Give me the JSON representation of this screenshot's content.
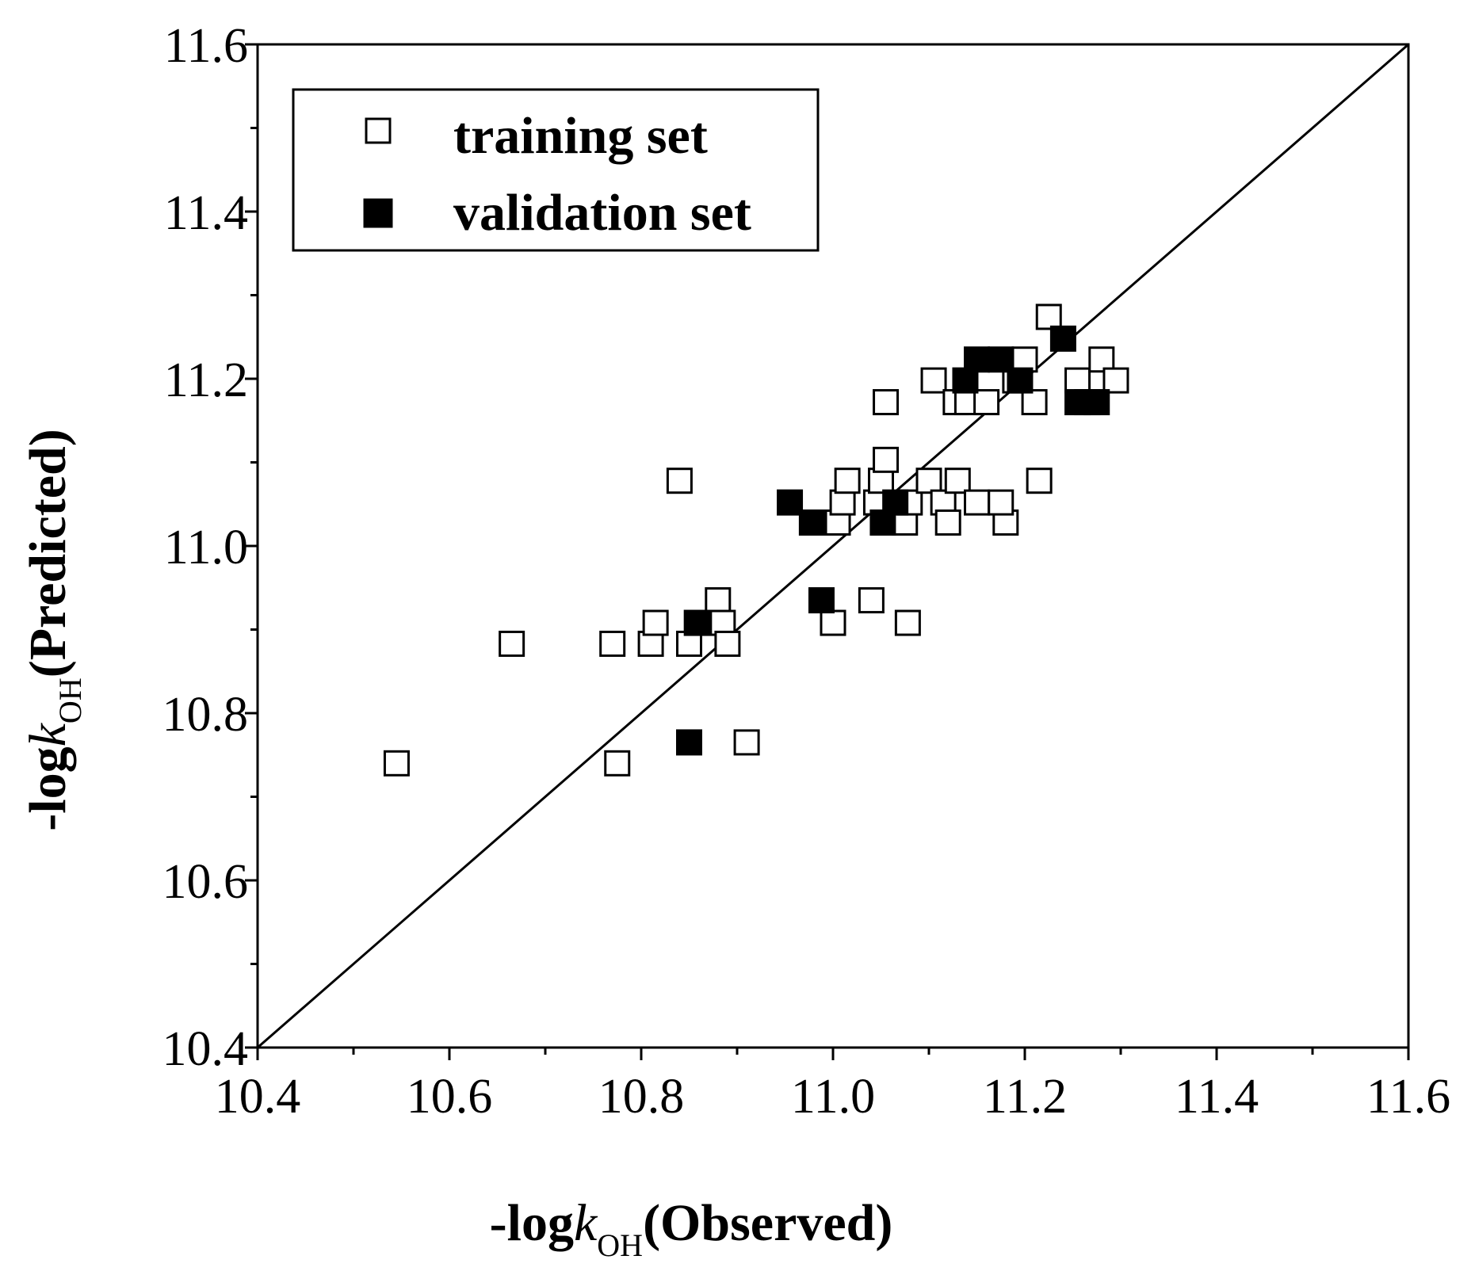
{
  "chart_data": {
    "type": "scatter",
    "title": "",
    "xlabel": {
      "prefix": "-log",
      "var": "k",
      "sub": "OH",
      "suffix": "(Observed)"
    },
    "ylabel": {
      "prefix": "-log",
      "var": "k",
      "sub": "OH",
      "suffix": "(Predicted)"
    },
    "xlim": [
      10.4,
      11.6
    ],
    "ylim": [
      10.4,
      11.6
    ],
    "xticks": [
      "10.4",
      "10.6",
      "10.8",
      "11.0",
      "11.2",
      "11.4",
      "11.6"
    ],
    "yticks": [
      "10.4",
      "10.6",
      "10.8",
      "11.0",
      "11.2",
      "11.4",
      "11.6"
    ],
    "grid": false,
    "legend_position": "top-left",
    "reference_line": {
      "from": [
        10.4,
        10.4
      ],
      "to": [
        11.6,
        11.6
      ]
    },
    "series": [
      {
        "name": "training set",
        "marker": "open-square",
        "points": [
          [
            10.545,
            10.74
          ],
          [
            10.665,
            10.883
          ],
          [
            10.775,
            10.74
          ],
          [
            10.77,
            10.883
          ],
          [
            10.81,
            10.883
          ],
          [
            10.815,
            10.908
          ],
          [
            10.84,
            11.078
          ],
          [
            10.85,
            10.883
          ],
          [
            10.88,
            10.935
          ],
          [
            10.885,
            10.908
          ],
          [
            10.89,
            10.883
          ],
          [
            10.91,
            10.765
          ],
          [
            11.0,
            10.908
          ],
          [
            11.005,
            11.028
          ],
          [
            11.01,
            11.052
          ],
          [
            11.015,
            11.078
          ],
          [
            11.04,
            10.935
          ],
          [
            11.045,
            11.052
          ],
          [
            11.05,
            11.078
          ],
          [
            11.055,
            11.103
          ],
          [
            11.055,
            11.172
          ],
          [
            11.075,
            11.028
          ],
          [
            11.08,
            11.052
          ],
          [
            11.078,
            10.908
          ],
          [
            11.1,
            11.078
          ],
          [
            11.105,
            11.198
          ],
          [
            11.115,
            11.052
          ],
          [
            11.12,
            11.028
          ],
          [
            11.128,
            11.172
          ],
          [
            11.13,
            11.078
          ],
          [
            11.14,
            11.172
          ],
          [
            11.15,
            11.052
          ],
          [
            11.16,
            11.172
          ],
          [
            11.18,
            11.028
          ],
          [
            11.175,
            11.052
          ],
          [
            11.19,
            11.198
          ],
          [
            11.2,
            11.223
          ],
          [
            11.21,
            11.172
          ],
          [
            11.215,
            11.078
          ],
          [
            11.225,
            11.274
          ],
          [
            11.255,
            11.198
          ],
          [
            11.265,
            11.172
          ],
          [
            11.28,
            11.223
          ],
          [
            11.295,
            11.198
          ]
        ]
      },
      {
        "name": "validation set",
        "marker": "filled-square",
        "points": [
          [
            10.85,
            10.765
          ],
          [
            10.858,
            10.908
          ],
          [
            10.955,
            11.052
          ],
          [
            10.978,
            11.028
          ],
          [
            10.988,
            10.935
          ],
          [
            11.052,
            11.028
          ],
          [
            11.065,
            11.052
          ],
          [
            11.138,
            11.198
          ],
          [
            11.15,
            11.223
          ],
          [
            11.175,
            11.223
          ],
          [
            11.195,
            11.198
          ],
          [
            11.24,
            11.248
          ],
          [
            11.255,
            11.172
          ],
          [
            11.275,
            11.172
          ]
        ]
      }
    ]
  }
}
